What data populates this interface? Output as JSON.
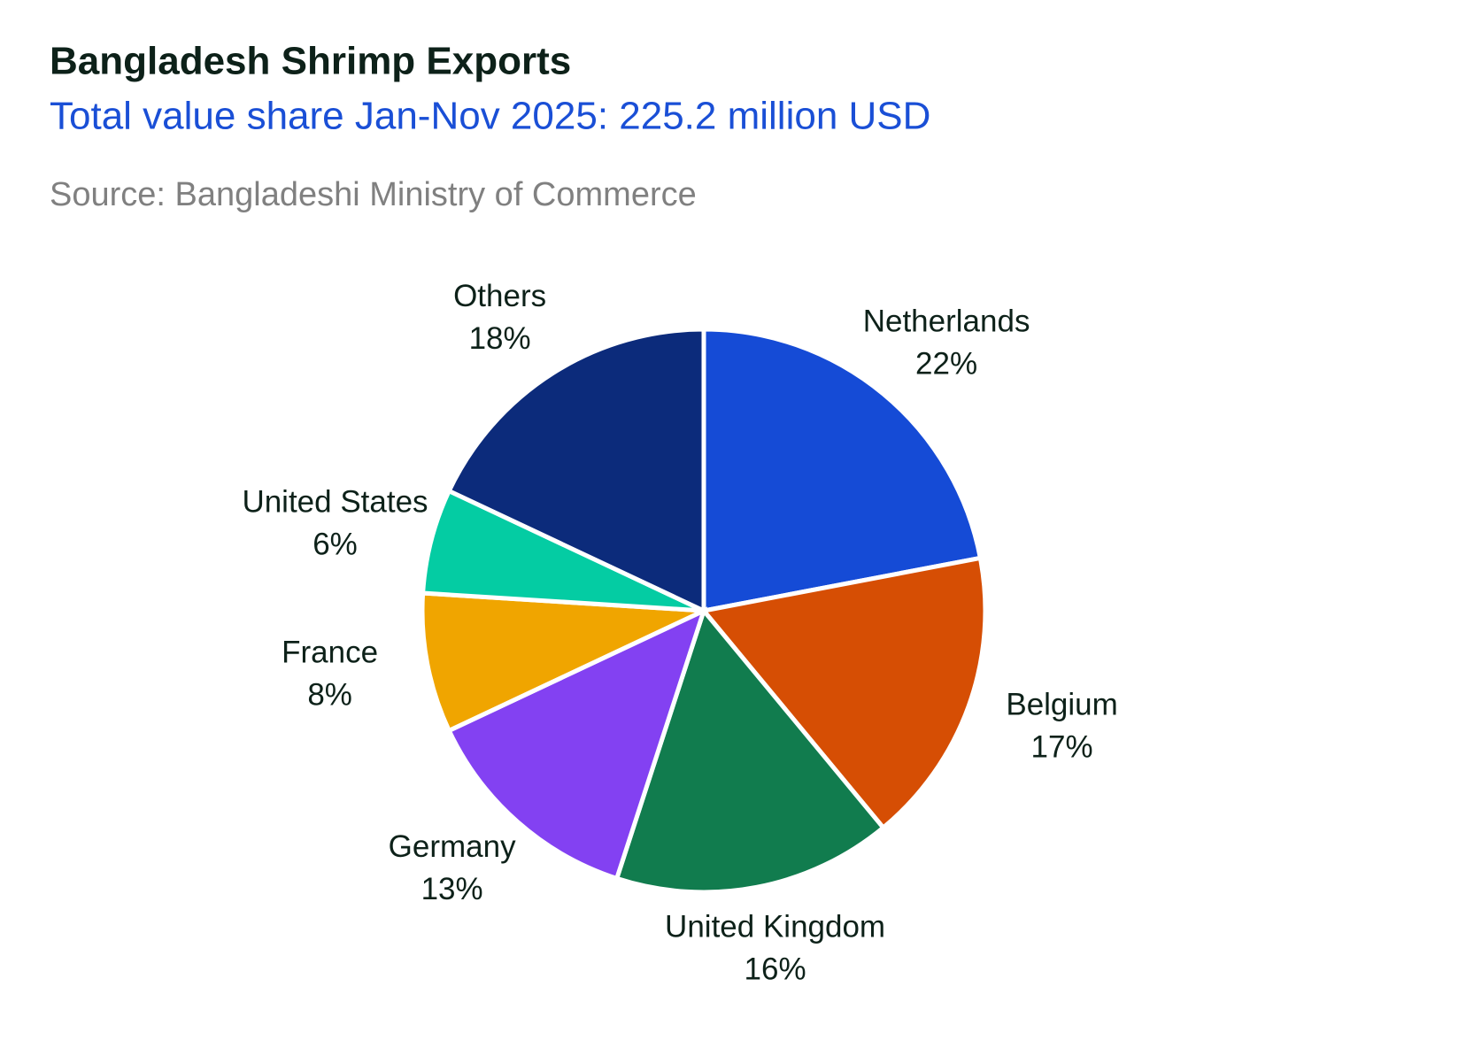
{
  "chart_data": {
    "type": "pie",
    "title": "Bangladesh Shrimp Exports",
    "subtitle": "Total value share Jan-Nov 2025: 225.2 million USD",
    "source": "Source: Bangladeshi Ministry of Commerce",
    "categories": [
      "Netherlands",
      "Belgium",
      "United Kingdom",
      "Germany",
      "France",
      "United States",
      "Others"
    ],
    "values": [
      22,
      17,
      16,
      13,
      8,
      6,
      18
    ],
    "value_labels": [
      "22%",
      "17%",
      "16%",
      "13%",
      "8%",
      "6%",
      "18%"
    ],
    "colors": [
      "#154bd6",
      "#d64e04",
      "#117c4e",
      "#8341f2",
      "#f0a500",
      "#04cca3",
      "#0c2b7b"
    ]
  }
}
